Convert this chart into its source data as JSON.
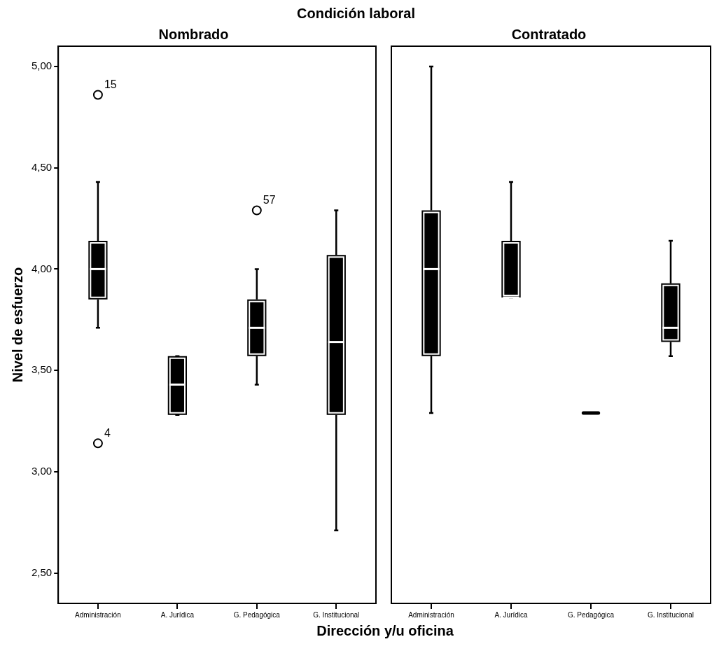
{
  "chart_data": [
    {
      "type": "box",
      "title": "Nombrado",
      "xlabel": "Dirección y/u oficina",
      "ylabel": "Nivel de esfuerzo",
      "color": "#000000",
      "marker": "circle",
      "categories": [
        "Administración",
        "A. Jurídica",
        "G. Pedagógica",
        "G. Institucional"
      ],
      "boxes": [
        {
          "low": 3.71,
          "q1": 3.85,
          "median": 4.0,
          "q3": 4.14,
          "high": 4.43,
          "outliers": [
            4.86,
            3.14
          ]
        },
        {
          "low": 3.28,
          "q1": 3.28,
          "median": 3.43,
          "q3": 3.57,
          "high": 3.57
        },
        {
          "low": 3.43,
          "q1": 3.57,
          "median": 3.71,
          "q3": 3.85,
          "high": 4.0,
          "outliers": [
            4.29
          ]
        },
        {
          "low": 2.71,
          "q1": 3.28,
          "median": 3.64,
          "q3": 4.07,
          "high": 4.29
        }
      ],
      "ylim": [
        2.35,
        5.1
      ],
      "yticks": [
        {
          "value": 2.5,
          "label": "2,50"
        },
        {
          "value": 3,
          "label": "3,00"
        },
        {
          "value": 3.5,
          "label": "3,50"
        },
        {
          "value": 4,
          "label": "4,00"
        },
        {
          "value": 4.5,
          "label": "4,50"
        },
        {
          "value": 5,
          "label": "5,00"
        }
      ],
      "annotations": [
        "Condición laboral",
        "15",
        "4",
        "57"
      ]
    },
    {
      "type": "box",
      "title": "Contratado",
      "color": "#000000",
      "tick_labels": "x",
      "categories": [
        "Administración",
        "A. Jurídica",
        "G. Pedagógica",
        "G. Institucional"
      ],
      "boxes": [
        {
          "low": 3.29,
          "q1": 3.57,
          "median": 4.0,
          "q3": 4.29,
          "high": 5.0
        },
        {
          "low": 3.86,
          "q1": 3.86,
          "median": 3.86,
          "q3": 4.14,
          "high": 4.43
        },
        {
          "low": 3.29,
          "q1": 3.29,
          "median": 3.29,
          "q3": 3.29,
          "high": 3.29
        },
        {
          "low": 3.57,
          "q1": 3.64,
          "median": 3.71,
          "q3": 3.93,
          "high": 4.14
        }
      ],
      "ylim": [
        2.35,
        5.1
      ]
    }
  ]
}
